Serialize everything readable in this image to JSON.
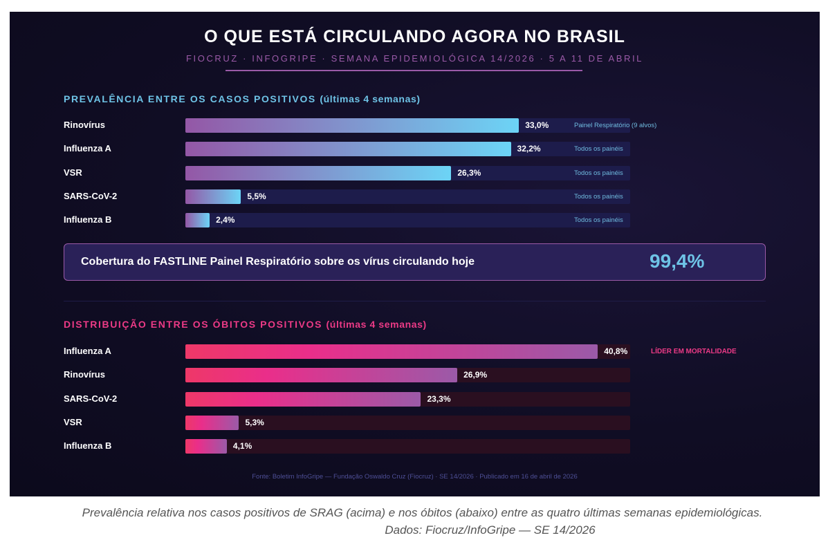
{
  "header": {
    "title": "O QUE ESTÁ CIRCULANDO AGORA NO BRASIL",
    "subtitle": "FIOCRUZ · INFOGRIPE · SEMANA EPIDEMIOLÓGICA 14/2026 · 5 A 11 DE ABRIL"
  },
  "coverage": {
    "label": "Cobertura do FASTLINE Painel Respiratório sobre os vírus circulando hoje",
    "value": "99,4%"
  },
  "source": "Fonte: Boletim InfoGripe — Fundação Oswaldo Cruz (Fiocruz) · SE 14/2026 · Publicado em 16 de abril de 2026",
  "caption": {
    "line1": "Prevalência relativa nos casos positivos de SRAG (acima) e nos óbitos (abaixo) entre as quatro últimas semanas epidemiológicas.",
    "line2": "Dados: Fiocruz/InfoGripe — SE 14/2026"
  },
  "colors": {
    "cyan": "#6ec3e6",
    "pink": "#ec3a86",
    "purple": "#9b5aa8",
    "background": "#100d24"
  },
  "chart_data": [
    {
      "type": "bar",
      "orientation": "horizontal",
      "title": "PREVALÊNCIA ENTRE OS CASOS POSITIVOS",
      "title_suffix": "(últimas 4 semanas)",
      "xlim": [
        0,
        44
      ],
      "categories": [
        "Rinovírus",
        "Influenza A",
        "VSR",
        "SARS-CoV-2",
        "Influenza B"
      ],
      "values": [
        33.0,
        32.2,
        26.3,
        5.5,
        2.4
      ],
      "value_labels": [
        "33,0%",
        "32,2%",
        "26,3%",
        "5,5%",
        "2,4%"
      ],
      "notes": [
        "Painel Respiratório (9 alvos)",
        "Todos os painéis",
        "Todos os painéis",
        "Todos os painéis",
        "Todos os painéis"
      ]
    },
    {
      "type": "bar",
      "orientation": "horizontal",
      "title": "DISTRIBUIÇÃO ENTRE OS ÓBITOS POSITIVOS",
      "title_suffix": "(últimas 4 semanas)",
      "xlim": [
        0,
        44
      ],
      "categories": [
        "Influenza A",
        "Rinovírus",
        "SARS-CoV-2",
        "VSR",
        "Influenza B"
      ],
      "values": [
        40.8,
        26.9,
        23.3,
        5.3,
        4.1
      ],
      "value_labels": [
        "40,8%",
        "26,9%",
        "23,3%",
        "5,3%",
        "4,1%"
      ],
      "annotation": "LÍDER EM MORTALIDADE"
    }
  ]
}
